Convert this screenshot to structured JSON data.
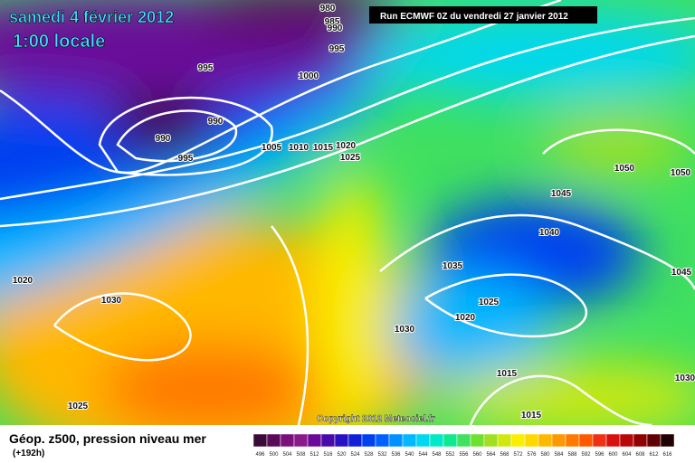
{
  "header": {
    "date": "samedi 4 février 2012",
    "time": "1:00 locale",
    "run": "Run ECMWF 0Z du vendredi 27 janvier 2012"
  },
  "copyright": "Copyright 2012 Meteociel.fr",
  "footer": {
    "title": "Géop. z500, pression niveau mer",
    "lead": "(+192h)"
  },
  "isobar_labels": [
    "980",
    "985",
    "990",
    "995",
    "995",
    "1000",
    "990",
    "990",
    "995",
    "1005",
    "1010",
    "1015",
    "1020",
    "1025",
    "1050",
    "1050",
    "1045",
    "1040",
    "1035",
    "1045",
    "1020",
    "1030",
    "1025",
    "1020",
    "1030",
    "1015",
    "1030",
    "1025",
    "1015"
  ],
  "legend": {
    "labels": [
      "496",
      "500",
      "504",
      "508",
      "512",
      "516",
      "520",
      "524",
      "528",
      "532",
      "536",
      "540",
      "544",
      "548",
      "552",
      "556",
      "560",
      "564",
      "568",
      "572",
      "576",
      "580",
      "584",
      "588",
      "592",
      "596",
      "600",
      "604",
      "608",
      "612",
      "616"
    ],
    "colors": [
      "#3a0a3a",
      "#5a0a5a",
      "#7a107a",
      "#8a1a8a",
      "#6a0a9a",
      "#4a0aaa",
      "#2a10c0",
      "#1020d8",
      "#0040f0",
      "#0060ff",
      "#0090ff",
      "#00b8ff",
      "#00d8f0",
      "#00e8c8",
      "#10e890",
      "#40e060",
      "#70e030",
      "#a0e020",
      "#d0e810",
      "#f8f000",
      "#ffd800",
      "#ffb800",
      "#ff9800",
      "#ff7800",
      "#ff5800",
      "#f03010",
      "#d81010",
      "#b80808",
      "#900000",
      "#600000",
      "#200000"
    ]
  }
}
